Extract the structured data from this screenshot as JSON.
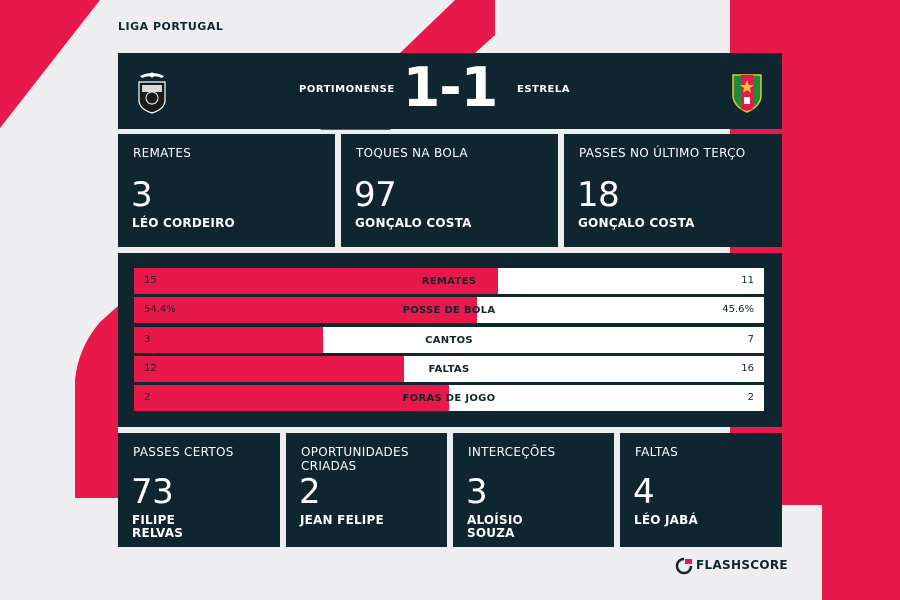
{
  "league": "LIGA PORTUGAL",
  "match": {
    "home_team": "PORTIMONENSE",
    "away_team": "ESTRELA",
    "score": "1-1"
  },
  "top_cards": [
    {
      "label": "REMATES",
      "value": "3",
      "player": "LÉO CORDEIRO"
    },
    {
      "label": "TOQUES NA BOLA",
      "value": "97",
      "player": "GONÇALO COSTA"
    },
    {
      "label": "PASSES NO ÚLTIMO TERÇO",
      "value": "18",
      "player": "GONÇALO COSTA"
    }
  ],
  "stats": [
    {
      "name": "REMATES",
      "home": "15",
      "away": "11",
      "home_share": 0.577
    },
    {
      "name": "POSSE DE BOLA",
      "home": "54.4%",
      "away": "45.6%",
      "home_share": 0.544
    },
    {
      "name": "CANTOS",
      "home": "3",
      "away": "7",
      "home_share": 0.3
    },
    {
      "name": "FALTAS",
      "home": "12",
      "away": "16",
      "home_share": 0.429
    },
    {
      "name": "FORAS DE JOGO",
      "home": "2",
      "away": "2",
      "home_share": 0.5
    }
  ],
  "bottom_cards": [
    {
      "label": "PASSES CERTOS",
      "value": "73",
      "player": "FILIPE RELVAS"
    },
    {
      "label": "OPORTUNIDADES CRIADAS",
      "value": "2",
      "player": "JEAN FELIPE"
    },
    {
      "label": "INTERCEÇÕES",
      "value": "3",
      "player": "ALOÍSIO SOUZA"
    },
    {
      "label": "FALTAS",
      "value": "4",
      "player": "LÉO JABÁ"
    }
  ],
  "brand": "FLASHSCORE",
  "colors": {
    "accent": "#e8194a",
    "panel": "#0f2530",
    "background": "#eeeef0"
  }
}
